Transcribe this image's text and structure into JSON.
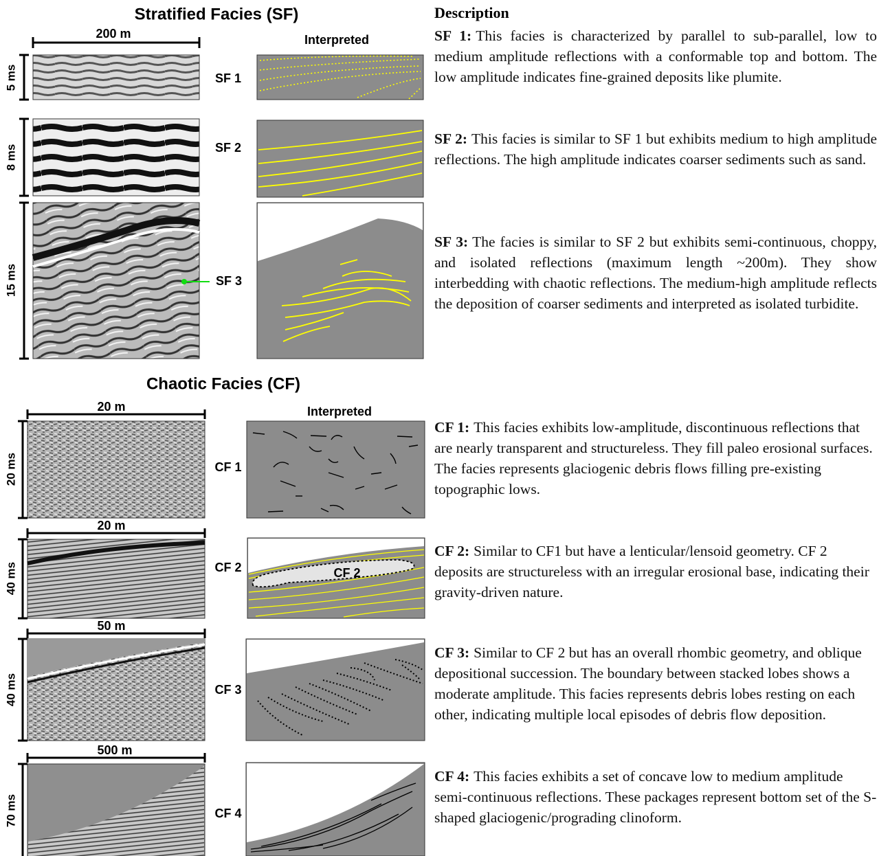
{
  "stratified": {
    "title": "Stratified Facies (SF)",
    "interpreted_label": "Interpreted",
    "scale_bar": "200 m",
    "rows": [
      {
        "label": "SF 1",
        "time": "5 ms"
      },
      {
        "label": "SF 2",
        "time": "8 ms"
      },
      {
        "label": "SF 3",
        "time": "15 ms"
      }
    ]
  },
  "chaotic": {
    "title": "Chaotic Facies (CF)",
    "interpreted_label": "Interpreted",
    "rows": [
      {
        "label": "CF 1",
        "time": "20 ms",
        "scale_bar": "20 m"
      },
      {
        "label": "CF 2",
        "time": "40 ms",
        "scale_bar": "20 m",
        "inner_label": "CF 2"
      },
      {
        "label": "CF 3",
        "time": "40 ms",
        "scale_bar": "50 m"
      },
      {
        "label": "CF 4",
        "time": "70 ms",
        "scale_bar": "500 m"
      }
    ]
  },
  "description": {
    "heading": "Description",
    "items": [
      {
        "term": "SF 1:",
        "text": "This facies is characterized by parallel to sub-parallel, low to medium amplitude reflections with a conformable top and bottom. The low amplitude indicates fine-grained deposits like plumite."
      },
      {
        "term": "SF 2:",
        "text": "This facies is similar to SF 1 but exhibits medium to high amplitude reflections. The high amplitude indicates coarser sediments such as sand."
      },
      {
        "term": "SF 3:",
        "text": "The facies is similar to SF 2 but exhibits semi-continuous, choppy, and isolated reflections (maximum length ~200m). They show interbedding with chaotic reflections. The medium-high amplitude reflects the deposition of coarser sediments and interpreted as isolated turbidite."
      },
      {
        "term": "CF 1:",
        "text": "This facies exhibits low-amplitude, discontinuous reflections that are nearly transparent and structureless. They fill paleo erosional surfaces. The facies represents glaciogenic debris flows filling pre-existing topographic lows."
      },
      {
        "term": "CF 2:",
        "text": "Similar to CF1 but have a lenticular/lensoid geometry. CF 2 deposits are structureless with an irregular erosional base, indicating their gravity-driven nature."
      },
      {
        "term": "CF 3:",
        "text": "Similar to CF 2 but has an overall rhombic geometry, and oblique depositional succession. The boundary between stacked lobes shows a moderate amplitude. This facies represents debris lobes resting on each other, indicating multiple local episodes of debris flow deposition."
      },
      {
        "term": "CF 4:",
        "text": "This facies exhibits a set of concave low to medium amplitude semi-continuous reflections. These packages represent bottom set of the S-shaped glaciogenic/prograding clinoform."
      }
    ]
  }
}
